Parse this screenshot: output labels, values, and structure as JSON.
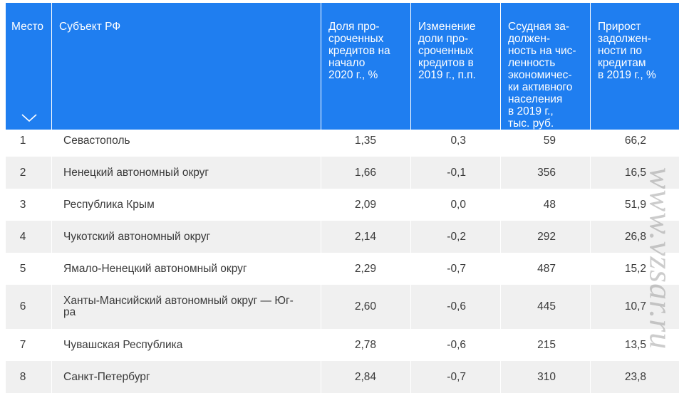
{
  "table": {
    "headers": {
      "rank": "Место",
      "region": "Субъект РФ",
      "overdue_share": "Доля про-\nсроченных\nкредитов на\nначало\n2020 г., %",
      "overdue_change": "Изменение\nдоли про-\nсроченных\nкредитов в\n2019 г., п.п.",
      "debt_per_capita": "Ссудная за-\nдолжен-\nность на чис-\nленность\nэкономичес-\nки активного\nнаселения\nв 2019 г.,\nтыс. руб.",
      "debt_growth": "Прирост\nзадолжен-\nности по\nкредитам\nв 2019 г., %"
    },
    "sort_icon": "chevron-down-icon",
    "rows": [
      {
        "rank": "1",
        "region": "Севастополь",
        "overdue_share": "1,35",
        "overdue_change": "0,3",
        "debt_per_capita": "59",
        "debt_growth": "66,2"
      },
      {
        "rank": "2",
        "region": "Ненецкий автономный округ",
        "overdue_share": "1,66",
        "overdue_change": "-0,1",
        "debt_per_capita": "356",
        "debt_growth": "16,5"
      },
      {
        "rank": "3",
        "region": "Республика Крым",
        "overdue_share": "2,09",
        "overdue_change": "0,0",
        "debt_per_capita": "48",
        "debt_growth": "51,9"
      },
      {
        "rank": "4",
        "region": "Чукотский автономный округ",
        "overdue_share": "2,14",
        "overdue_change": "-0,2",
        "debt_per_capita": "292",
        "debt_growth": "26,8"
      },
      {
        "rank": "5",
        "region": "Ямало-Ненецкий автономный округ",
        "overdue_share": "2,29",
        "overdue_change": "-0,7",
        "debt_per_capita": "487",
        "debt_growth": "15,2"
      },
      {
        "rank": "6",
        "region": "Ханты-Мансийский автономный округ — Юг-\nра",
        "overdue_share": "2,60",
        "overdue_change": "-0,6",
        "debt_per_capita": "445",
        "debt_growth": "10,7"
      },
      {
        "rank": "7",
        "region": "Чувашская Республика",
        "overdue_share": "2,78",
        "overdue_change": "-0,6",
        "debt_per_capita": "215",
        "debt_growth": "13,5"
      },
      {
        "rank": "8",
        "region": "Санкт-Петербург",
        "overdue_share": "2,84",
        "overdue_change": "-0,7",
        "debt_per_capita": "310",
        "debt_growth": "23,8"
      }
    ]
  },
  "watermark": "www.vzsar.ru",
  "colors": {
    "header_bg": "#1f7ef0",
    "header_text": "#ffffff",
    "row_alt_bg": "#f0f0f0"
  }
}
